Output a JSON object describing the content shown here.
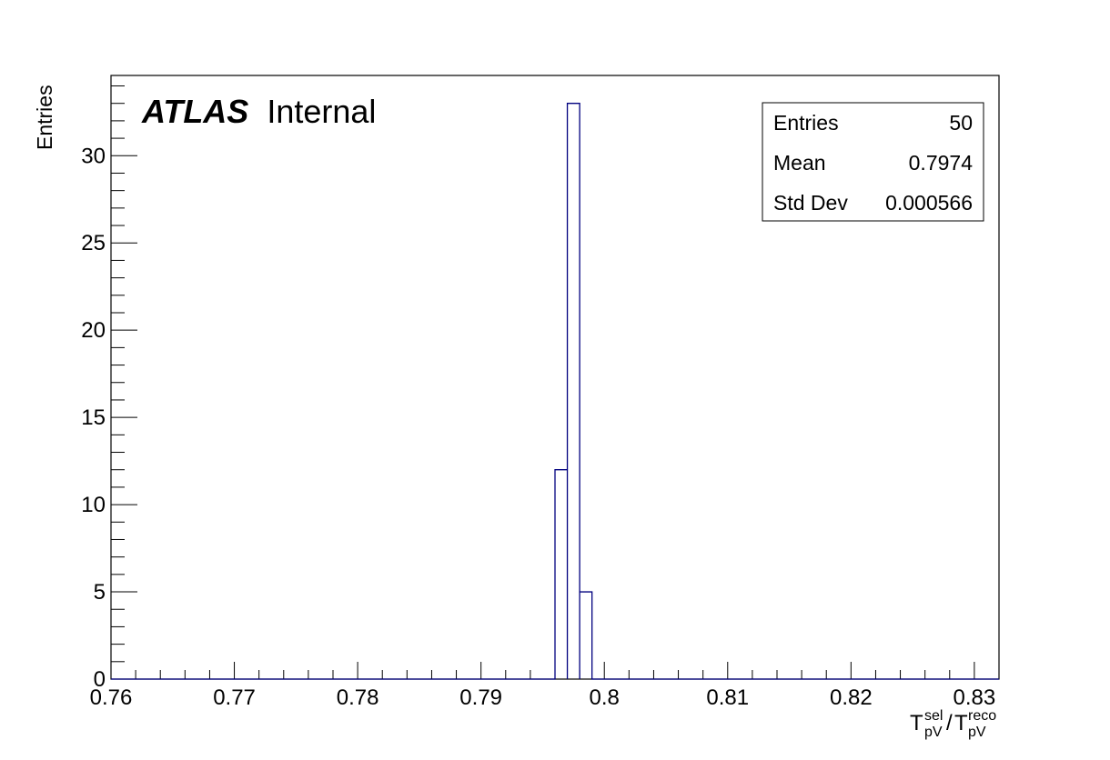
{
  "chart_data": {
    "type": "histogram",
    "title": "",
    "ylabel": "Entries",
    "xlabel": {
      "base": "T",
      "sub": "pV",
      "sup": "sel",
      "separator": "/",
      "base2": "T",
      "sub2": "pV",
      "sup2": "reco"
    },
    "xlim": [
      0.76,
      0.832
    ],
    "ylim": [
      0,
      34.6
    ],
    "x_ticks": [
      0.76,
      0.77,
      0.78,
      0.79,
      0.8,
      0.81,
      0.82,
      0.83
    ],
    "x_tick_labels": [
      "0.76",
      "0.77",
      "0.78",
      "0.79",
      "0.8",
      "0.81",
      "0.82",
      "0.83"
    ],
    "y_ticks": [
      0,
      5,
      10,
      15,
      20,
      25,
      30
    ],
    "y_tick_labels": [
      "0",
      "5",
      "10",
      "15",
      "20",
      "25",
      "30"
    ],
    "bins": [
      {
        "low": 0.796,
        "high": 0.797,
        "count": 12
      },
      {
        "low": 0.797,
        "high": 0.798,
        "count": 33
      },
      {
        "low": 0.798,
        "high": 0.799,
        "count": 5
      }
    ],
    "line_color": "#00007f",
    "grid": false,
    "annotation": {
      "bold": "ATLAS",
      "normal": "Internal"
    },
    "stats_box": {
      "position": "top-right",
      "rows": [
        {
          "label": "Entries",
          "value": "50"
        },
        {
          "label": "Mean",
          "value": "0.7974"
        },
        {
          "label": "Std Dev",
          "value": "0.000566"
        }
      ]
    }
  }
}
